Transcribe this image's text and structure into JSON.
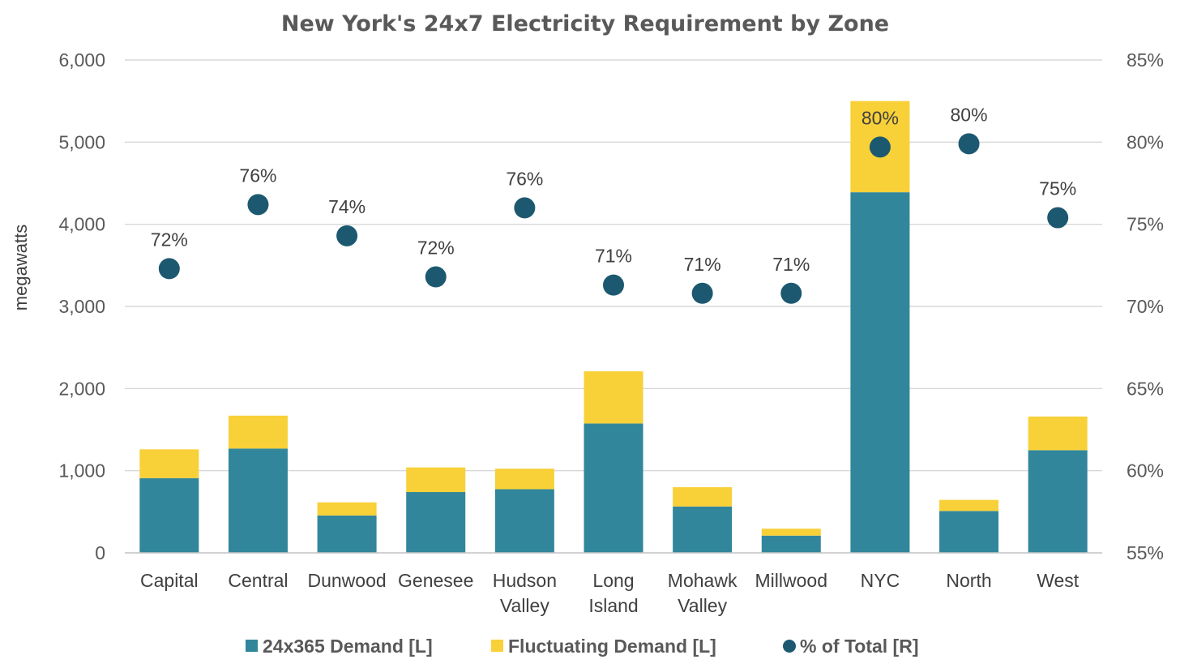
{
  "chart_data": {
    "type": "bar",
    "stacked": true,
    "title": "New York's 24x7 Electricity Requirement by Zone",
    "ylabel": "megawatts",
    "ylim": [
      0,
      6000
    ],
    "y_ticks": [
      0,
      1000,
      2000,
      3000,
      4000,
      5000,
      6000
    ],
    "y_tick_labels": [
      "0",
      "1,000",
      "2,000",
      "3,000",
      "4,000",
      "5,000",
      "6,000"
    ],
    "y2lim": [
      0.55,
      0.85
    ],
    "y2_ticks": [
      0.55,
      0.6,
      0.65,
      0.7,
      0.75,
      0.8,
      0.85
    ],
    "y2_tick_labels": [
      "55%",
      "60%",
      "65%",
      "70%",
      "75%",
      "80%",
      "85%"
    ],
    "grid": true,
    "legend_position": "bottom",
    "categories": [
      [
        "Capital"
      ],
      [
        "Central"
      ],
      [
        "Dunwood"
      ],
      [
        "Genesee"
      ],
      [
        "Hudson",
        "Valley"
      ],
      [
        "Long",
        "Island"
      ],
      [
        "Mohawk",
        "Valley"
      ],
      [
        "Millwood"
      ],
      [
        "NYC"
      ],
      [
        "North"
      ],
      [
        "West"
      ]
    ],
    "series": [
      {
        "name": "24x365 Demand [L]",
        "axis": "left",
        "kind": "bar",
        "color": "#31869b",
        "values": [
          910,
          1270,
          455,
          740,
          775,
          1575,
          565,
          210,
          4390,
          510,
          1250
        ]
      },
      {
        "name": "Fluctuating Demand [L]",
        "axis": "left",
        "kind": "bar",
        "color": "#f8d038",
        "values": [
          350,
          400,
          160,
          300,
          250,
          635,
          235,
          85,
          1110,
          135,
          410
        ]
      },
      {
        "name": "% of Total [R]",
        "axis": "right",
        "kind": "scatter",
        "color": "#1c5970",
        "values": [
          0.723,
          0.762,
          0.743,
          0.718,
          0.76,
          0.713,
          0.708,
          0.708,
          0.797,
          0.799,
          0.754
        ],
        "labels": [
          "72%",
          "76%",
          "74%",
          "72%",
          "76%",
          "71%",
          "71%",
          "71%",
          "80%",
          "80%",
          "75%"
        ]
      }
    ]
  }
}
